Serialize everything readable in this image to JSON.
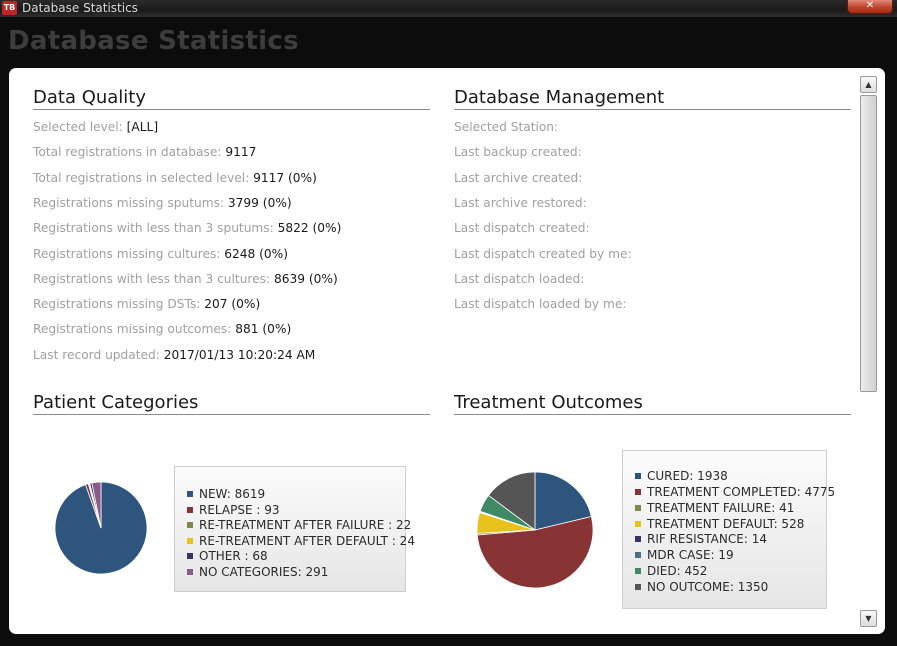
{
  "window": {
    "title": "Database Statistics",
    "logo": "TB",
    "close_glyph": "✕"
  },
  "header": {
    "title": "Database Statistics"
  },
  "data_quality": {
    "title": "Data Quality",
    "rows": [
      {
        "label": "Selected level:",
        "value": "[ALL]"
      },
      {
        "label": "Total registrations in database:",
        "value": "9117"
      },
      {
        "label": "Total registrations in selected level:",
        "value": "9117 (0%)"
      },
      {
        "label": "Registrations missing sputums:",
        "value": "3799 (0%)"
      },
      {
        "label": "Registrations with less than 3 sputums:",
        "value": "5822 (0%)"
      },
      {
        "label": "Registrations missing cultures:",
        "value": "6248 (0%)"
      },
      {
        "label": "Registrations with less than 3 cultures:",
        "value": "8639 (0%)"
      },
      {
        "label": "Registrations missing DSTs:",
        "value": "207 (0%)"
      },
      {
        "label": "Registrations missing outcomes:",
        "value": "881 (0%)"
      },
      {
        "label": "Last record updated:",
        "value": "2017/01/13 10:20:24 AM"
      }
    ]
  },
  "database_management": {
    "title": "Database Management",
    "rows": [
      {
        "label": "Selected Station:",
        "value": ""
      },
      {
        "label": "Last backup created:",
        "value": ""
      },
      {
        "label": "Last archive created:",
        "value": ""
      },
      {
        "label": "Last archive restored:",
        "value": ""
      },
      {
        "label": "Last dispatch created:",
        "value": ""
      },
      {
        "label": "Last dispatch created by me:",
        "value": ""
      },
      {
        "label": "Last dispatch loaded:",
        "value": ""
      },
      {
        "label": "Last dispatch loaded by me:",
        "value": ""
      }
    ]
  },
  "patient_categories": {
    "title": "Patient Categories",
    "legend": [
      "NEW: 8619",
      "RELAPSE : 93",
      "RE-TREATMENT AFTER FAILURE : 22",
      "RE-TREATMENT AFTER DEFAULT : 24",
      "OTHER : 68",
      "NO CATEGORIES: 291"
    ]
  },
  "treatment_outcomes": {
    "title": "Treatment Outcomes",
    "legend": [
      "CURED: 1938",
      "TREATMENT COMPLETED: 4775",
      "TREATMENT FAILURE: 41",
      "TREATMENT DEFAULT: 528",
      "RIF RESISTANCE: 14",
      "MDR CASE: 19",
      "DIED: 452",
      "NO OUTCOME: 1350"
    ]
  },
  "chart_data": [
    {
      "type": "pie",
      "title": "Patient Categories",
      "categories": [
        "NEW",
        "RELAPSE",
        "RE-TREATMENT AFTER FAILURE",
        "RE-TREATMENT AFTER DEFAULT",
        "OTHER",
        "NO CATEGORIES"
      ],
      "values": [
        8619,
        93,
        22,
        24,
        68,
        291
      ],
      "colors": [
        "#2e557e",
        "#893434",
        "#7a8a48",
        "#e8c21a",
        "#3a3266",
        "#8a5a8a"
      ],
      "legend_position": "right"
    },
    {
      "type": "pie",
      "title": "Treatment Outcomes",
      "categories": [
        "CURED",
        "TREATMENT COMPLETED",
        "TREATMENT FAILURE",
        "TREATMENT DEFAULT",
        "RIF RESISTANCE",
        "MDR CASE",
        "DIED",
        "NO OUTCOME"
      ],
      "values": [
        1938,
        4775,
        41,
        528,
        14,
        19,
        452,
        1350
      ],
      "colors": [
        "#2e557e",
        "#893434",
        "#7a8a48",
        "#e8c21a",
        "#3a3266",
        "#4c6e88",
        "#3e8a64",
        "#555555"
      ],
      "legend_position": "right"
    }
  ],
  "scrollbar": {
    "up_glyph": "▲",
    "down_glyph": "▼"
  }
}
